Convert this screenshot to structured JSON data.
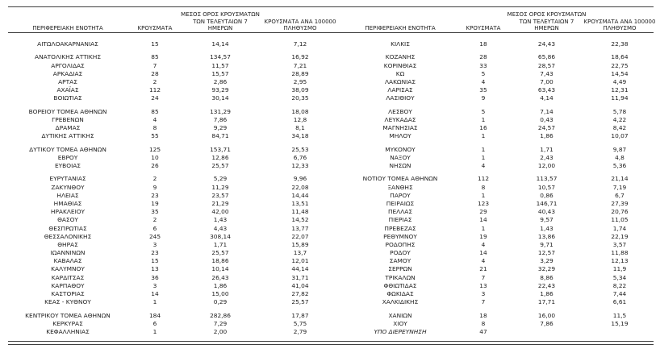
{
  "page": {
    "background": "#ffffff",
    "text_color": "#1c1c1c",
    "rule_color": "#3f3f3f"
  },
  "columns": {
    "region": "ΠΕΡΙΦΕΡΕΙΑΚΗ ΕΝΟΤΗΤΑ",
    "cases": "ΚΡΟΥΣΜΑΤΑ",
    "avg7": [
      "ΜΕΣΟΣ ΟΡΟΣ ΚΡΟΥΣΜΑΤΩΝ",
      "ΤΩΝ ΤΕΛΕΥΤΑΙΩΝ 7",
      "ΗΜΕΡΩΝ"
    ],
    "per100k": [
      "ΚΡΟΥΣΜΑΤΑ ΑΝΑ 100000",
      "ΠΛΗΘΥΣΜΟ"
    ]
  },
  "left_table": {
    "groups": [
      [
        [
          "ΑΙΤΩΛΟΑΚΑΡΝΑΝΙΑΣ",
          "15",
          "14,14",
          "7,12"
        ]
      ],
      [
        [
          "ΑΝΑΤΟΛΙΚΗΣ ΑΤΤΙΚΗΣ",
          "85",
          "134,57",
          "16,92"
        ],
        [
          "ΑΡΓΟΛΙΔΑΣ",
          "7",
          "11,57",
          "7,21"
        ],
        [
          "ΑΡΚΑΔΙΑΣ",
          "28",
          "15,57",
          "28,89"
        ],
        [
          "ΑΡΤΑΣ",
          "2",
          "2,86",
          "2,95"
        ],
        [
          "ΑΧΑΪΑΣ",
          "112",
          "93,29",
          "38,09"
        ],
        [
          "ΒΟΙΩΤΙΑΣ",
          "24",
          "30,14",
          "20,35"
        ]
      ],
      [
        [
          "ΒΟΡΕΙΟΥ ΤΟΜΕΑ ΑΘΗΝΩΝ",
          "85",
          "131,29",
          "18,08"
        ],
        [
          "ΓΡΕΒΕΝΩΝ",
          "4",
          "7,86",
          "12,8"
        ],
        [
          "ΔΡΑΜΑΣ",
          "8",
          "9,29",
          "8,1"
        ],
        [
          "ΔΥΤΙΚΗΣ ΑΤΤΙΚΗΣ",
          "55",
          "84,71",
          "34,18"
        ]
      ],
      [
        [
          "ΔΥΤΙΚΟΥ ΤΟΜΕΑ ΑΘΗΝΩΝ",
          "125",
          "153,71",
          "25,53"
        ],
        [
          "ΕΒΡΟΥ",
          "10",
          "12,86",
          "6,76"
        ],
        [
          "ΕΥΒΟΙΑΣ",
          "26",
          "25,57",
          "12,33"
        ]
      ],
      [
        [
          "ΕΥΡΥΤΑΝΙΑΣ",
          "2",
          "5,29",
          "9,96"
        ],
        [
          "ΖΑΚΥΝΘΟΥ",
          "9",
          "11,29",
          "22,08"
        ],
        [
          "ΗΛΕΙΑΣ",
          "23",
          "23,57",
          "14,44"
        ],
        [
          "ΗΜΑΘΙΑΣ",
          "19",
          "21,29",
          "13,51"
        ],
        [
          "ΗΡΑΚΛΕΙΟΥ",
          "35",
          "42,00",
          "11,48"
        ],
        [
          "ΘΑΣΟΥ",
          "2",
          "1,43",
          "14,52"
        ],
        [
          "ΘΕΣΠΡΩΤΙΑΣ",
          "6",
          "4,43",
          "13,77"
        ],
        [
          "ΘΕΣΣΑΛΟΝΙΚΗΣ",
          "245",
          "308,14",
          "22,07"
        ],
        [
          "ΘΗΡΑΣ",
          "3",
          "1,71",
          "15,89"
        ],
        [
          "ΙΩΑΝΝΙΝΩΝ",
          "23",
          "25,57",
          "13,7"
        ],
        [
          "ΚΑΒΑΛΑΣ",
          "15",
          "18,86",
          "12,01"
        ],
        [
          "ΚΑΛΥΜΝΟΥ",
          "13",
          "10,14",
          "44,14"
        ],
        [
          "ΚΑΡΔΙΤΣΑΣ",
          "36",
          "26,43",
          "31,71"
        ],
        [
          "ΚΑΡΠΑΘΟΥ",
          "3",
          "1,86",
          "41,04"
        ],
        [
          "ΚΑΣΤΟΡΙΑΣ",
          "14",
          "15,00",
          "27,82"
        ],
        [
          "ΚΕΑΣ - ΚΥΘΝΟΥ",
          "1",
          "0,29",
          "25,57"
        ]
      ],
      [
        [
          "ΚΕΝΤΡΙΚΟΥ ΤΟΜΕΑ ΑΘΗΝΩΝ",
          "184",
          "282,86",
          "17,87"
        ],
        [
          "ΚΕΡΚΥΡΑΣ",
          "6",
          "7,29",
          "5,75"
        ],
        [
          "ΚΕΦΑΛΛΗΝΙΑΣ",
          "1",
          "2,00",
          "2,79"
        ]
      ]
    ]
  },
  "right_table": {
    "groups": [
      [
        [
          "ΚΙΛΚΙΣ",
          "18",
          "24,43",
          "22,38"
        ]
      ],
      [
        [
          "ΚΟΖΑΝΗΣ",
          "28",
          "65,86",
          "18,64"
        ],
        [
          "ΚΟΡΙΝΘΙΑΣ",
          "33",
          "28,57",
          "22,75"
        ],
        [
          "ΚΩ",
          "5",
          "7,43",
          "14,54"
        ],
        [
          "ΛΑΚΩΝΙΑΣ",
          "4",
          "7,00",
          "4,49"
        ],
        [
          "ΛΑΡΙΣΑΣ",
          "35",
          "63,43",
          "12,31"
        ],
        [
          "ΛΑΣΙΘΙΟΥ",
          "9",
          "4,14",
          "11,94"
        ]
      ],
      [
        [
          "ΛΕΣΒΟΥ",
          "5",
          "7,14",
          "5,78"
        ],
        [
          "ΛΕΥΚΑΔΑΣ",
          "1",
          "0,43",
          "4,22"
        ],
        [
          "ΜΑΓΝΗΣΙΑΣ",
          "16",
          "24,57",
          "8,42"
        ],
        [
          "ΜΗΛΟΥ",
          "1",
          "1,86",
          "10,07"
        ]
      ],
      [
        [
          "ΜΥΚΟΝΟΥ",
          "1",
          "1,71",
          "9,87"
        ],
        [
          "ΝΑΞΟΥ",
          "1",
          "2,43",
          "4,8"
        ],
        [
          "ΝΗΣΩΝ",
          "4",
          "12,00",
          "5,36"
        ]
      ],
      [
        [
          "ΝΟΤΙΟΥ ΤΟΜΕΑ ΑΘΗΝΩΝ",
          "112",
          "113,57",
          "21,14"
        ],
        [
          "ΞΑΝΘΗΣ",
          "8",
          "10,57",
          "7,19"
        ],
        [
          "ΠΑΡΟΥ",
          "1",
          "0,86",
          "6,7"
        ],
        [
          "ΠΕΙΡΑΙΩΣ",
          "123",
          "146,71",
          "27,39"
        ],
        [
          "ΠΕΛΛΑΣ",
          "29",
          "40,43",
          "20,76"
        ],
        [
          "ΠΙΕΡΙΑΣ",
          "14",
          "9,57",
          "11,05"
        ],
        [
          "ΠΡΕΒΕΖΑΣ",
          "1",
          "1,43",
          "1,74"
        ],
        [
          "ΡΕΘΥΜΝΟΥ",
          "19",
          "13,86",
          "22,19"
        ],
        [
          "ΡΟΔΟΠΗΣ",
          "4",
          "9,71",
          "3,57"
        ],
        [
          "ΡΟΔΟΥ",
          "14",
          "12,57",
          "11,88"
        ],
        [
          "ΣΑΜΟΥ",
          "4",
          "3,29",
          "12,13"
        ],
        [
          "ΣΕΡΡΩΝ",
          "21",
          "32,29",
          "11,9"
        ],
        [
          "ΤΡΙΚΑΛΩΝ",
          "7",
          "8,86",
          "5,34"
        ],
        [
          "ΦΘΙΩΤΙΔΑΣ",
          "13",
          "22,43",
          "8,22"
        ],
        [
          "ΦΩΚΙΔΑΣ",
          "3",
          "1,86",
          "7,44"
        ],
        [
          "ΧΑΛΚΙΔΙΚΗΣ",
          "7",
          "17,71",
          "6,61"
        ]
      ],
      [
        [
          "ΧΑΝΙΩΝ",
          "18",
          "16,00",
          "11,5"
        ],
        [
          "ΧΙΟΥ",
          "8",
          "7,86",
          "15,19"
        ],
        [
          "ΥΠΟ ΔΙΕΡΕΥΝΗΣΗ",
          "47",
          "",
          ""
        ]
      ]
    ]
  },
  "notes": {
    "italic_row": "ΥΠΟ ΔΙΕΡΕΥΝΗΣΗ"
  }
}
